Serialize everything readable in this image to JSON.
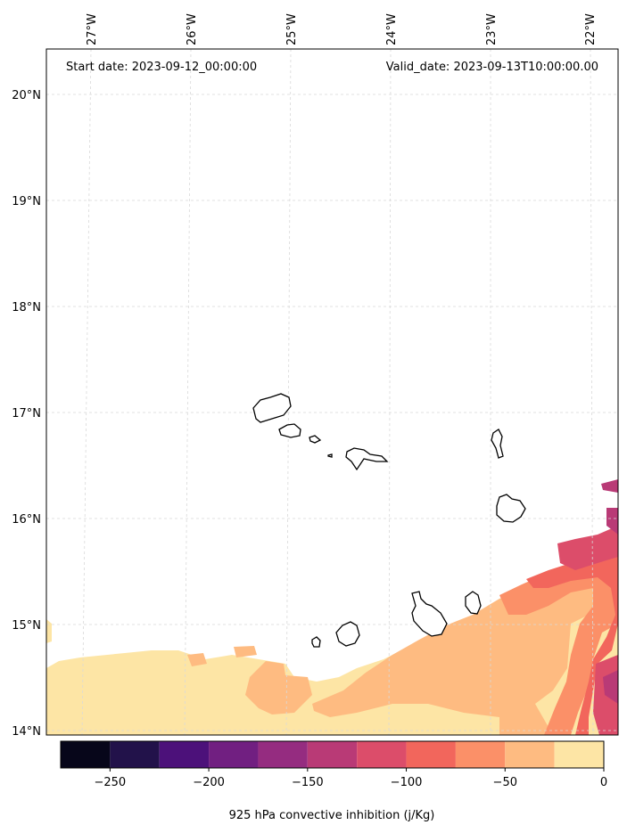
{
  "header": {
    "start_date": "Start date: 2023-09-12_00:00:00",
    "valid_date": "Valid_date: 2023-09-13T10:00:00.00"
  },
  "longitude_labels": [
    "27°W",
    "26°W",
    "25°W",
    "24°W",
    "23°W",
    "22°W"
  ],
  "latitude_labels": [
    "20°N",
    "19°N",
    "18°N",
    "17°N",
    "16°N",
    "15°N",
    "14°N"
  ],
  "colorbar": {
    "title": "925 hPa convective inhibition (j/Kg)",
    "ticks": [
      "−250",
      "−200",
      "−150",
      "−100",
      "−50",
      "0"
    ],
    "levels": [
      -275,
      -250,
      -225,
      -200,
      -175,
      -150,
      -125,
      -100,
      -75,
      -50,
      -25,
      0
    ],
    "colors": [
      "#07061a",
      "#22124a",
      "#4c117a",
      "#711f81",
      "#952c80",
      "#b93a76",
      "#dc4d6a",
      "#f2665c",
      "#fb9068",
      "#febb81",
      "#fde5a5"
    ]
  },
  "map": {
    "fill_colors": {
      "0_to_-25": "#fde5a5",
      "-25_to_-50": "#febb81",
      "-50_to_-75": "#fb9068",
      "-75_to_-100": "#f2665c",
      "-100_to_-125": "#dc4d6a",
      "-125_to_-150": "#b93a76"
    }
  }
}
